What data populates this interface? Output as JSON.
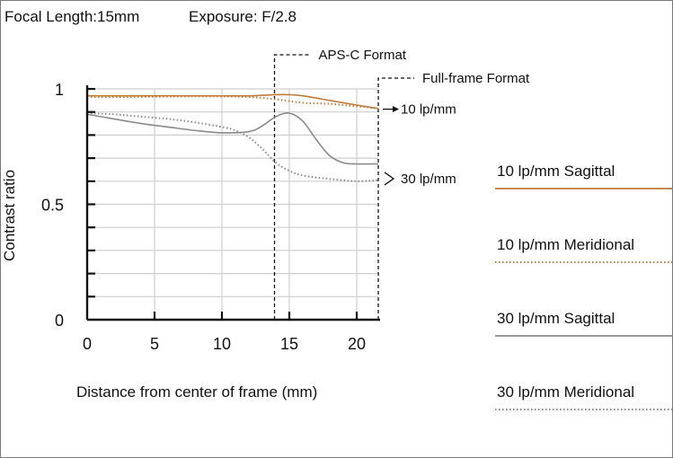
{
  "header": {
    "focal_length": "Focal Length:15mm",
    "exposure": "Exposure: F/2.8"
  },
  "chart_data": {
    "type": "line",
    "xlabel": "Distance from center of frame (mm)",
    "ylabel": "Contrast ratio",
    "xlim": [
      0,
      21.6
    ],
    "ylim": [
      0,
      1
    ],
    "x_ticks": [
      0,
      5,
      10,
      15,
      20
    ],
    "y_tick_labels": [
      {
        "value": 1,
        "label": "1"
      },
      {
        "value": 0.5,
        "label": "0.5"
      },
      {
        "value": 0,
        "label": "0"
      }
    ],
    "grid": true,
    "format_markers": [
      {
        "label": "APS-C Format",
        "x": 13.9
      },
      {
        "label": "Full-frame Format",
        "x": 21.6
      }
    ],
    "annotations": [
      {
        "label": "10 lp/mm",
        "y": 0.92
      },
      {
        "label": "30 lp/mm",
        "y": 0.65
      }
    ],
    "series": [
      {
        "name": "10 lp/mm Sagittal",
        "color": "#c07a3a",
        "style": "solid",
        "x": [
          0,
          3,
          6,
          9,
          12,
          14,
          15,
          16,
          18,
          20,
          21.6
        ],
        "y": [
          0.97,
          0.97,
          0.97,
          0.97,
          0.97,
          0.975,
          0.975,
          0.97,
          0.95,
          0.93,
          0.915
        ]
      },
      {
        "name": "10 lp/mm Meridional",
        "color": "#c07a3a",
        "style": "dotted",
        "x": [
          0,
          3,
          6,
          9,
          12,
          14,
          16,
          18,
          20,
          21.6
        ],
        "y": [
          0.965,
          0.965,
          0.967,
          0.968,
          0.965,
          0.955,
          0.94,
          0.935,
          0.925,
          0.915
        ]
      },
      {
        "name": "30 lp/mm Sagittal",
        "color": "#8a8a8a",
        "style": "solid",
        "x": [
          0,
          2,
          4,
          6,
          8,
          10,
          12,
          13,
          14,
          15,
          16,
          17,
          18,
          19,
          20,
          21.6
        ],
        "y": [
          0.89,
          0.87,
          0.85,
          0.835,
          0.82,
          0.81,
          0.815,
          0.84,
          0.88,
          0.895,
          0.86,
          0.78,
          0.71,
          0.68,
          0.675,
          0.675
        ]
      },
      {
        "name": "30 lp/mm Meridional",
        "color": "#8a8a8a",
        "style": "dotted",
        "x": [
          0,
          2,
          4,
          6,
          8,
          10,
          11,
          12,
          13,
          14,
          15,
          16,
          18,
          20,
          21.6
        ],
        "y": [
          0.895,
          0.89,
          0.88,
          0.87,
          0.855,
          0.835,
          0.82,
          0.79,
          0.74,
          0.68,
          0.645,
          0.625,
          0.61,
          0.6,
          0.605
        ]
      }
    ]
  }
}
